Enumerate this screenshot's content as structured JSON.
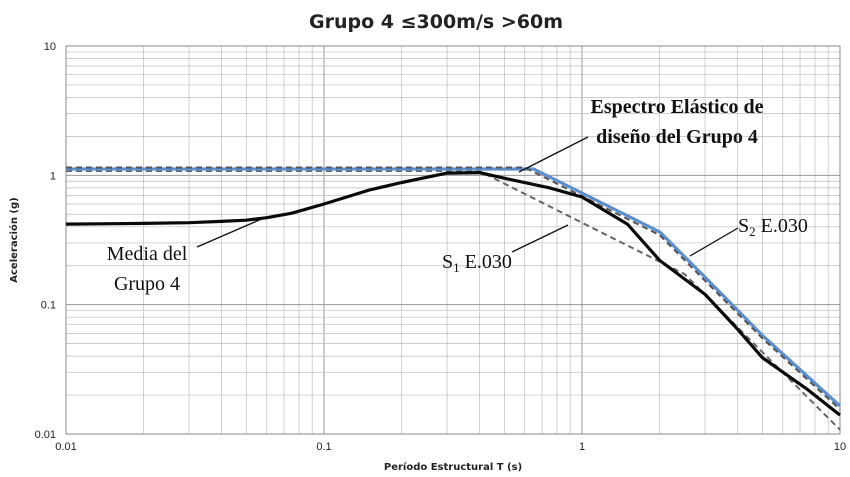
{
  "colors": {
    "media": "#0a0a0a",
    "s2": "#5b8fd0",
    "s2_dash": "#555555",
    "s1_dash": "#666666",
    "grid": "#bdbdbd",
    "grid_major": "#999999"
  },
  "chart_data": {
    "type": "line",
    "title": "Grupo 4 ≤300m/s >60m",
    "xlabel": "Período Estructural T (s)",
    "ylabel": "Aceleración (g)",
    "x_scale": "log",
    "y_scale": "log",
    "xlim": [
      0.01,
      10
    ],
    "ylim": [
      0.01,
      10
    ],
    "x_ticks": [
      "0.01",
      "0.1",
      "1",
      "10"
    ],
    "y_ticks": [
      "10",
      "1",
      "0.1",
      "0.01"
    ],
    "grid": true,
    "series": [
      {
        "name": "Media del Grupo 4",
        "style": "solid-black",
        "x": [
          0.01,
          0.02,
          0.03,
          0.04,
          0.05,
          0.06,
          0.075,
          0.1,
          0.15,
          0.2,
          0.3,
          0.4,
          0.5,
          0.75,
          1.0,
          1.5,
          2.0,
          3.0,
          4.0,
          5.0,
          7.5,
          10.0
        ],
        "y": [
          0.42,
          0.425,
          0.43,
          0.44,
          0.45,
          0.47,
          0.51,
          0.6,
          0.77,
          0.88,
          1.04,
          1.05,
          0.95,
          0.8,
          0.68,
          0.42,
          0.22,
          0.12,
          0.065,
          0.039,
          0.022,
          0.014
        ]
      },
      {
        "name": "Espectro Elástico de diseño del Grupo 4",
        "style": "solid-blue",
        "x": [
          0.01,
          0.65,
          1.0,
          2.0,
          3.0,
          5.0,
          10.0
        ],
        "y": [
          1.12,
          1.12,
          0.73,
          0.365,
          0.163,
          0.058,
          0.0165
        ]
      },
      {
        "name": "S2 E.030",
        "style": "dashed",
        "x": [
          0.01,
          0.6,
          1.0,
          2.0,
          3.0,
          5.0,
          10.0
        ],
        "y": [
          1.15,
          1.15,
          0.69,
          0.345,
          0.153,
          0.055,
          0.0155
        ]
      },
      {
        "name": "S1 E.030",
        "style": "dashed",
        "x": [
          0.01,
          0.4,
          1.0,
          2.5,
          5.0,
          10.0
        ],
        "y": [
          1.08,
          1.08,
          0.43,
          0.172,
          0.043,
          0.0108
        ]
      }
    ],
    "annotations": {
      "espectro_line1": "Espectro Elástico de",
      "espectro_line2": "diseño del Grupo 4",
      "media_line1": "Media del",
      "media_line2": "Grupo 4",
      "s2_main": "S",
      "s2_sub": "2",
      "s2_rest": " E.030",
      "s1_main": "S",
      "s1_sub": "1",
      "s1_rest": " E.030"
    }
  }
}
